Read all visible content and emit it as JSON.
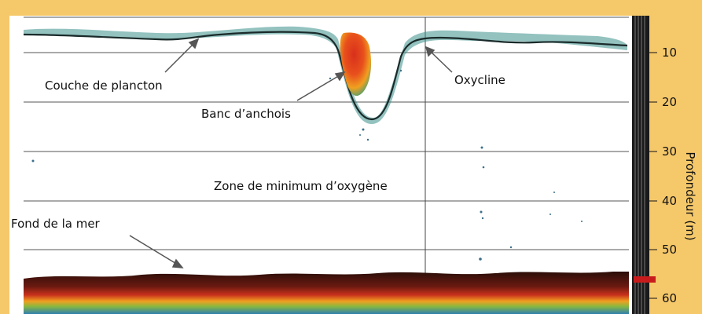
{
  "labels": {
    "plankton_layer": "Couche de plancton",
    "anchovy_school": "Banc d’anchois",
    "oxycline": "Oxycline",
    "oxygen_minimum_zone": "Zone de minimum d’oxygène",
    "seabed": "Fond de la mer"
  },
  "depth_axis": {
    "title": "Profondeur (m)",
    "ticks": [
      "10",
      "20",
      "30",
      "40",
      "50",
      "60"
    ]
  },
  "colors": {
    "frame": "#f5c86a",
    "water": "#ffffff",
    "plankton": "#3a8f8a",
    "school_core": "#d8301c",
    "school_edge": "#f0a020",
    "seabed": "#3a120c"
  }
}
